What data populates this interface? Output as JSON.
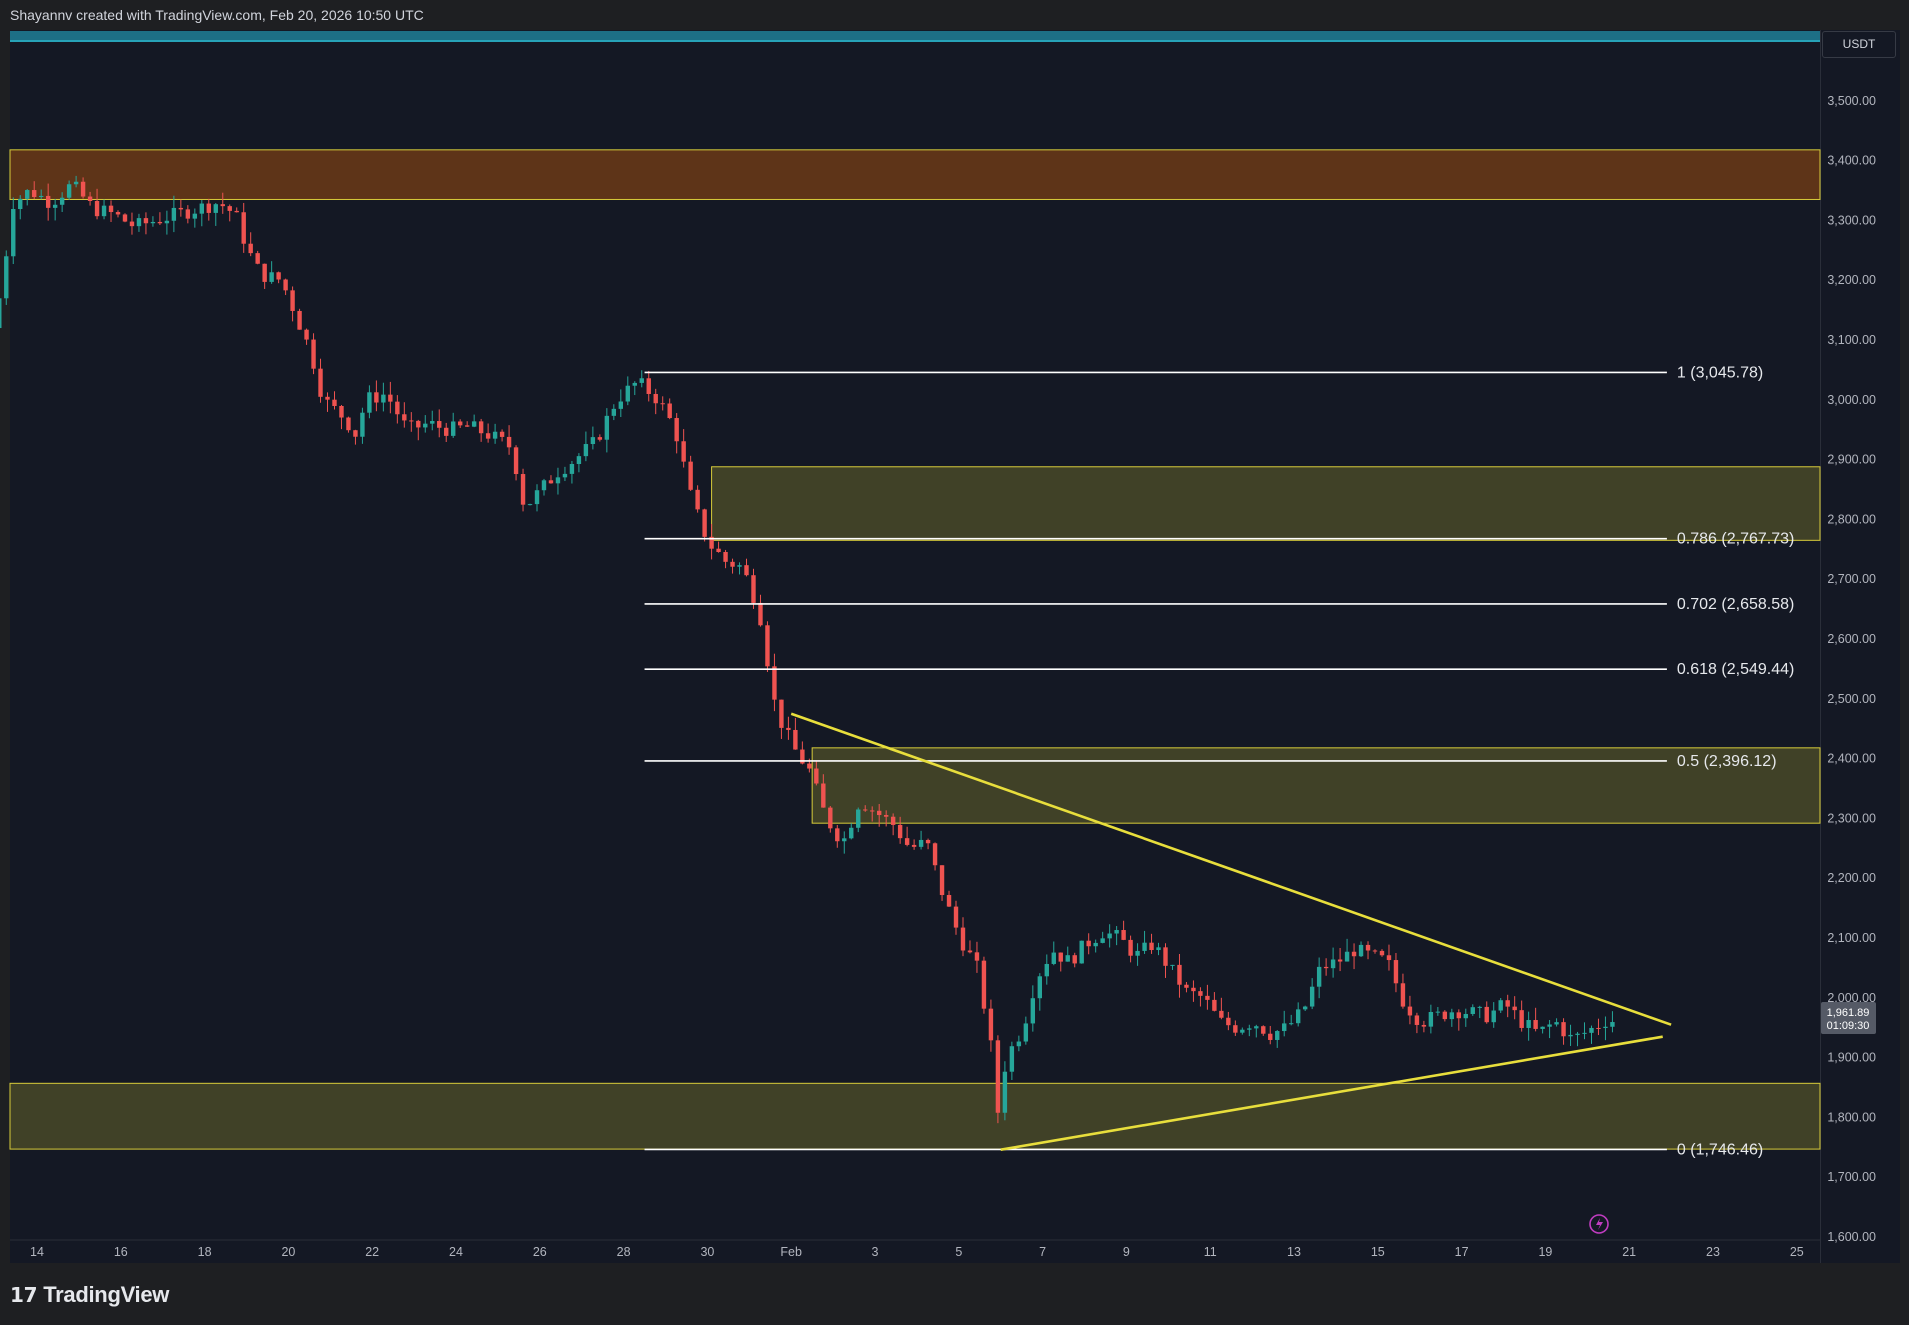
{
  "header": {
    "attribution": "Shayannv created with TradingView.com, Feb 20, 2026 10:50 UTC"
  },
  "price_scale": {
    "currency": "USDT",
    "current_price": "1,961.89",
    "countdown": "01:09:30"
  },
  "footer": {
    "brand": "TradingView"
  },
  "colors": {
    "background": "#141824",
    "up_candle": "#26a69a",
    "down_candle": "#ef5350",
    "supply_zone": "#6b3a16",
    "demand_zone": "#4b4a28",
    "zone_border": "#d8cc3a",
    "trendline": "#e8de3c",
    "fib_line": "#ffffff",
    "top_strip": "#1d6f86"
  },
  "chart_data": {
    "type": "candlestick",
    "title": "",
    "xlabel": "",
    "ylabel": "",
    "ylim": [
      1600,
      3500
    ],
    "yticks": [
      "3,500.00",
      "3,400.00",
      "3,300.00",
      "3,200.00",
      "3,100.00",
      "3,000.00",
      "2,900.00",
      "2,800.00",
      "2,700.00",
      "2,600.00",
      "2,500.00",
      "2,400.00",
      "2,300.00",
      "2,200.00",
      "2,100.00",
      "2,000.00",
      "1,900.00",
      "1,800.00",
      "1,700.00",
      "1,600.00"
    ],
    "xticks": [
      {
        "label": "14",
        "day": 14
      },
      {
        "label": "16",
        "day": 16
      },
      {
        "label": "18",
        "day": 18
      },
      {
        "label": "20",
        "day": 20
      },
      {
        "label": "22",
        "day": 22
      },
      {
        "label": "24",
        "day": 24
      },
      {
        "label": "26",
        "day": 26
      },
      {
        "label": "28",
        "day": 28
      },
      {
        "label": "30",
        "day": 30
      },
      {
        "label": "Feb",
        "day": 32
      },
      {
        "label": "3",
        "day": 34
      },
      {
        "label": "5",
        "day": 36
      },
      {
        "label": "7",
        "day": 38
      },
      {
        "label": "9",
        "day": 40
      },
      {
        "label": "11",
        "day": 42
      },
      {
        "label": "13",
        "day": 44
      },
      {
        "label": "15",
        "day": 46
      },
      {
        "label": "17",
        "day": 48
      },
      {
        "label": "19",
        "day": 50
      },
      {
        "label": "21",
        "day": 52
      },
      {
        "label": "23",
        "day": 54
      },
      {
        "label": "25",
        "day": 56
      }
    ],
    "price_path": [
      {
        "day": 13.1,
        "price": 3120
      },
      {
        "day": 13.3,
        "price": 3180
      },
      {
        "day": 13.6,
        "price": 3330
      },
      {
        "day": 14.0,
        "price": 3350
      },
      {
        "day": 14.5,
        "price": 3330
      },
      {
        "day": 15.0,
        "price": 3360
      },
      {
        "day": 15.5,
        "price": 3320
      },
      {
        "day": 16.0,
        "price": 3310
      },
      {
        "day": 16.5,
        "price": 3290
      },
      {
        "day": 17.0,
        "price": 3300
      },
      {
        "day": 17.5,
        "price": 3310
      },
      {
        "day": 18.0,
        "price": 3320
      },
      {
        "day": 18.5,
        "price": 3330
      },
      {
        "day": 18.9,
        "price": 3310
      },
      {
        "day": 19.2,
        "price": 3250
      },
      {
        "day": 19.5,
        "price": 3210
      },
      {
        "day": 20.0,
        "price": 3200
      },
      {
        "day": 20.3,
        "price": 3150
      },
      {
        "day": 20.7,
        "price": 3080
      },
      {
        "day": 21.0,
        "price": 3000
      },
      {
        "day": 21.5,
        "price": 2970
      },
      {
        "day": 21.8,
        "price": 2940
      },
      {
        "day": 22.0,
        "price": 3000
      },
      {
        "day": 22.5,
        "price": 3010
      },
      {
        "day": 23.0,
        "price": 2950
      },
      {
        "day": 23.5,
        "price": 2960
      },
      {
        "day": 24.0,
        "price": 2950
      },
      {
        "day": 24.5,
        "price": 2955
      },
      {
        "day": 25.0,
        "price": 2940
      },
      {
        "day": 25.5,
        "price": 2920
      },
      {
        "day": 25.8,
        "price": 2820
      },
      {
        "day": 26.2,
        "price": 2850
      },
      {
        "day": 26.6,
        "price": 2880
      },
      {
        "day": 27.0,
        "price": 2900
      },
      {
        "day": 27.5,
        "price": 2930
      },
      {
        "day": 28.0,
        "price": 3000
      },
      {
        "day": 28.5,
        "price": 3030
      },
      {
        "day": 29.0,
        "price": 3000
      },
      {
        "day": 29.4,
        "price": 2950
      },
      {
        "day": 29.8,
        "price": 2830
      },
      {
        "day": 30.2,
        "price": 2760
      },
      {
        "day": 30.6,
        "price": 2730
      },
      {
        "day": 31.0,
        "price": 2720
      },
      {
        "day": 31.4,
        "price": 2650
      },
      {
        "day": 31.8,
        "price": 2480
      },
      {
        "day": 32.2,
        "price": 2420
      },
      {
        "day": 32.6,
        "price": 2380
      },
      {
        "day": 33.0,
        "price": 2300
      },
      {
        "day": 33.4,
        "price": 2260
      },
      {
        "day": 33.8,
        "price": 2330
      },
      {
        "day": 34.2,
        "price": 2310
      },
      {
        "day": 34.6,
        "price": 2290
      },
      {
        "day": 35.0,
        "price": 2250
      },
      {
        "day": 35.4,
        "price": 2260
      },
      {
        "day": 35.8,
        "price": 2170
      },
      {
        "day": 36.2,
        "price": 2100
      },
      {
        "day": 36.6,
        "price": 2050
      },
      {
        "day": 36.9,
        "price": 1940
      },
      {
        "day": 37.1,
        "price": 1810
      },
      {
        "day": 37.3,
        "price": 1900
      },
      {
        "day": 37.7,
        "price": 1950
      },
      {
        "day": 38.0,
        "price": 2030
      },
      {
        "day": 38.4,
        "price": 2080
      },
      {
        "day": 38.8,
        "price": 2060
      },
      {
        "day": 39.2,
        "price": 2090
      },
      {
        "day": 39.6,
        "price": 2110
      },
      {
        "day": 40.0,
        "price": 2100
      },
      {
        "day": 40.4,
        "price": 2070
      },
      {
        "day": 40.8,
        "price": 2090
      },
      {
        "day": 41.2,
        "price": 2050
      },
      {
        "day": 41.6,
        "price": 2010
      },
      {
        "day": 42.0,
        "price": 2000
      },
      {
        "day": 42.4,
        "price": 1960
      },
      {
        "day": 42.8,
        "price": 1950
      },
      {
        "day": 43.2,
        "price": 1960
      },
      {
        "day": 43.6,
        "price": 1940
      },
      {
        "day": 44.0,
        "price": 1950
      },
      {
        "day": 44.4,
        "price": 1980
      },
      {
        "day": 44.8,
        "price": 2050
      },
      {
        "day": 45.2,
        "price": 2060
      },
      {
        "day": 45.6,
        "price": 2080
      },
      {
        "day": 46.0,
        "price": 2070
      },
      {
        "day": 46.4,
        "price": 2060
      },
      {
        "day": 46.8,
        "price": 1990
      },
      {
        "day": 47.2,
        "price": 1960
      },
      {
        "day": 47.6,
        "price": 1970
      },
      {
        "day": 48.0,
        "price": 1980
      },
      {
        "day": 48.4,
        "price": 1975
      },
      {
        "day": 48.8,
        "price": 1970
      },
      {
        "day": 49.2,
        "price": 1990
      },
      {
        "day": 49.6,
        "price": 1960
      },
      {
        "day": 50.0,
        "price": 1940
      },
      {
        "day": 50.4,
        "price": 1960
      },
      {
        "day": 50.8,
        "price": 1930
      },
      {
        "day": 51.2,
        "price": 1945
      },
      {
        "day": 51.6,
        "price": 1962
      }
    ],
    "zones": [
      {
        "name": "supply",
        "from_day": 13,
        "to_day": 57,
        "low": 3335,
        "high": 3418
      },
      {
        "name": "demand-upper",
        "from_day": 30.1,
        "to_day": 57,
        "low": 2765,
        "high": 2888
      },
      {
        "name": "demand-mid",
        "from_day": 32.5,
        "to_day": 57,
        "low": 2292,
        "high": 2418
      },
      {
        "name": "demand-lower",
        "from_day": 13,
        "to_day": 57,
        "low": 1747,
        "high": 1857
      }
    ],
    "fib_levels": [
      {
        "label": "1 (3,045.78)",
        "price": 3045.78
      },
      {
        "label": "0.786 (2,767.73)",
        "price": 2767.73
      },
      {
        "label": "0.702 (2,658.58)",
        "price": 2658.58
      },
      {
        "label": "0.618 (2,549.44)",
        "price": 2549.44
      },
      {
        "label": "0.5 (2,396.12)",
        "price": 2396.12
      },
      {
        "label": "0 (1,746.46)",
        "price": 1746.46
      }
    ],
    "fib_from_day": 28.5,
    "fib_to_day": 52.9,
    "trendlines": [
      {
        "name": "descending",
        "from": {
          "day": 32.0,
          "price": 2475
        },
        "to": {
          "day": 53.0,
          "price": 1955
        }
      },
      {
        "name": "ascending",
        "from": {
          "day": 37.0,
          "price": 1746
        },
        "to": {
          "day": 52.8,
          "price": 1935
        }
      }
    ]
  }
}
